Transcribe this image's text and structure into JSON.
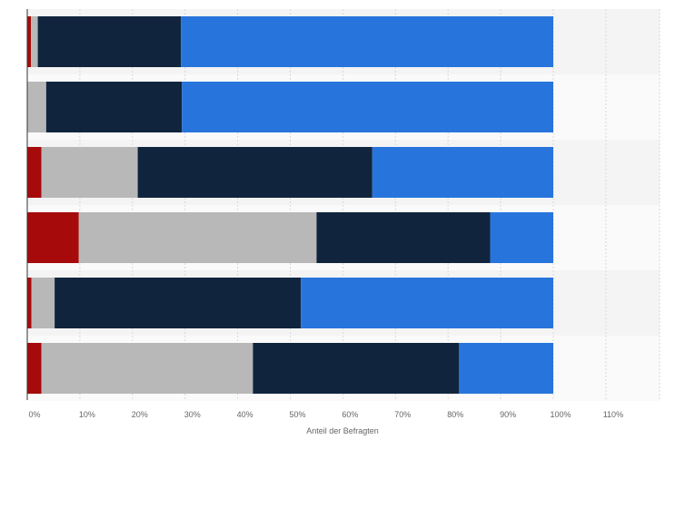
{
  "chart_data": {
    "type": "bar",
    "orientation": "horizontal",
    "stacked": true,
    "title": "",
    "xlabel": "Anteil der Befragten",
    "ylabel": "",
    "xlim": [
      0,
      120
    ],
    "xticks": [
      0,
      10,
      20,
      30,
      40,
      50,
      60,
      70,
      80,
      90,
      100,
      110
    ],
    "xtick_labels": [
      "0%",
      "10%",
      "20%",
      "30%",
      "40%",
      "50%",
      "60%",
      "70%",
      "80%",
      "90%",
      "100%",
      "110%"
    ],
    "grid": true,
    "legend": "none",
    "category_count": 6,
    "series": [
      {
        "color": "#a70a0a",
        "values": [
          0.7,
          0,
          2.7,
          9.8,
          0.8,
          2.7
        ]
      },
      {
        "color": "#b8b8b8",
        "values": [
          1.3,
          3.6,
          18.3,
          45.2,
          4.4,
          40.2
        ]
      },
      {
        "color": "#10253d",
        "values": [
          27.2,
          25.8,
          44.6,
          33.0,
          46.8,
          39.2
        ]
      },
      {
        "color": "#2775dc",
        "values": [
          70.8,
          70.6,
          34.4,
          12.0,
          48.0,
          17.9
        ]
      }
    ]
  }
}
